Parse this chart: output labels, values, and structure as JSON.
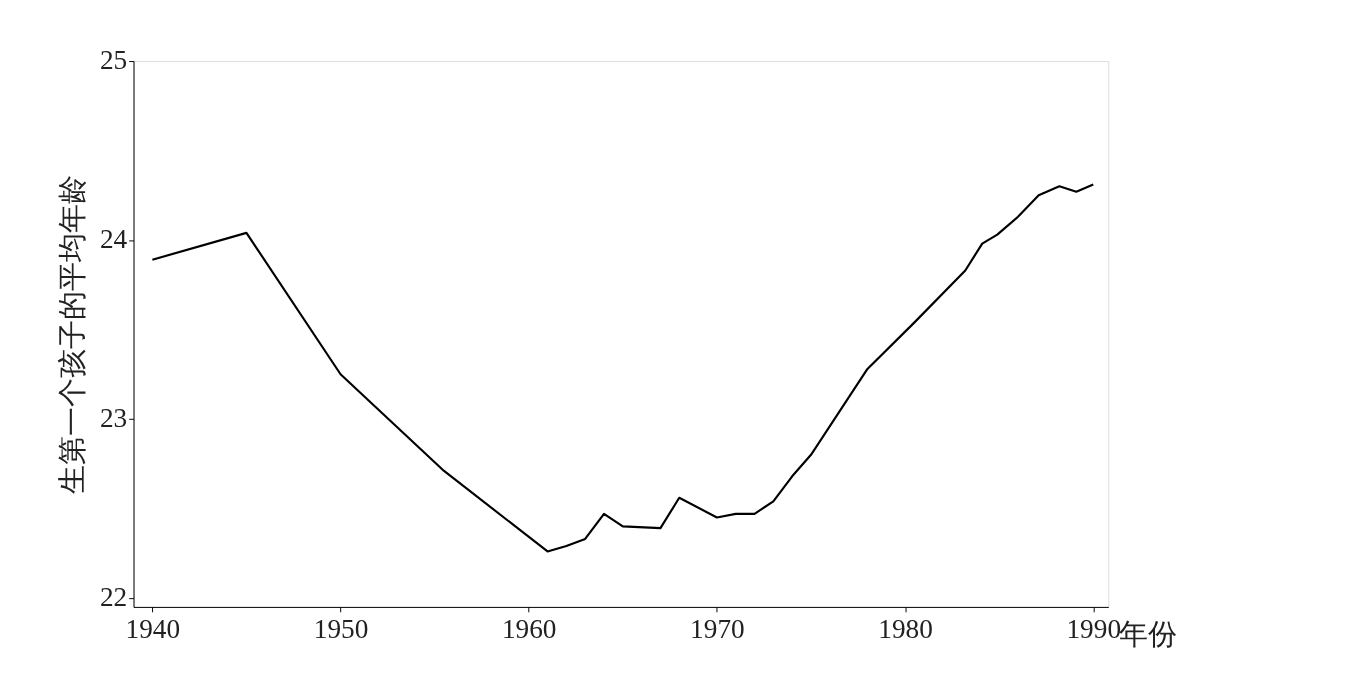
{
  "chart_data": {
    "type": "line",
    "xlabel": "年份",
    "ylabel": "生第一个孩子的平均年龄",
    "x": [
      1940,
      1945,
      1950,
      1955.5,
      1961,
      1962,
      1963,
      1964,
      1965,
      1967,
      1968,
      1970,
      1971,
      1972,
      1973,
      1974,
      1975,
      1978,
      1980.5,
      1983.2,
      1984.1,
      1984.9,
      1986,
      1987.1,
      1988.2,
      1989.1,
      1990
    ],
    "series": [
      {
        "color": "#000000",
        "values": [
          23.89,
          24.04,
          23.25,
          22.71,
          22.26,
          22.29,
          22.33,
          22.47,
          22.4,
          22.39,
          22.56,
          22.45,
          22.47,
          22.47,
          22.54,
          22.68,
          22.8,
          23.28,
          23.54,
          23.83,
          23.98,
          24.03,
          24.13,
          24.25,
          24.3,
          24.27,
          24.31
        ]
      }
    ],
    "xlim": [
      1939,
      1990.8
    ],
    "ylim": [
      21.95,
      25
    ],
    "xticks": [
      1940,
      1950,
      1960,
      1970,
      1980,
      1990
    ],
    "yticks": [
      22,
      23,
      24,
      25
    ],
    "grid": false,
    "legend": false,
    "marker": "none",
    "line_style": "solid"
  }
}
